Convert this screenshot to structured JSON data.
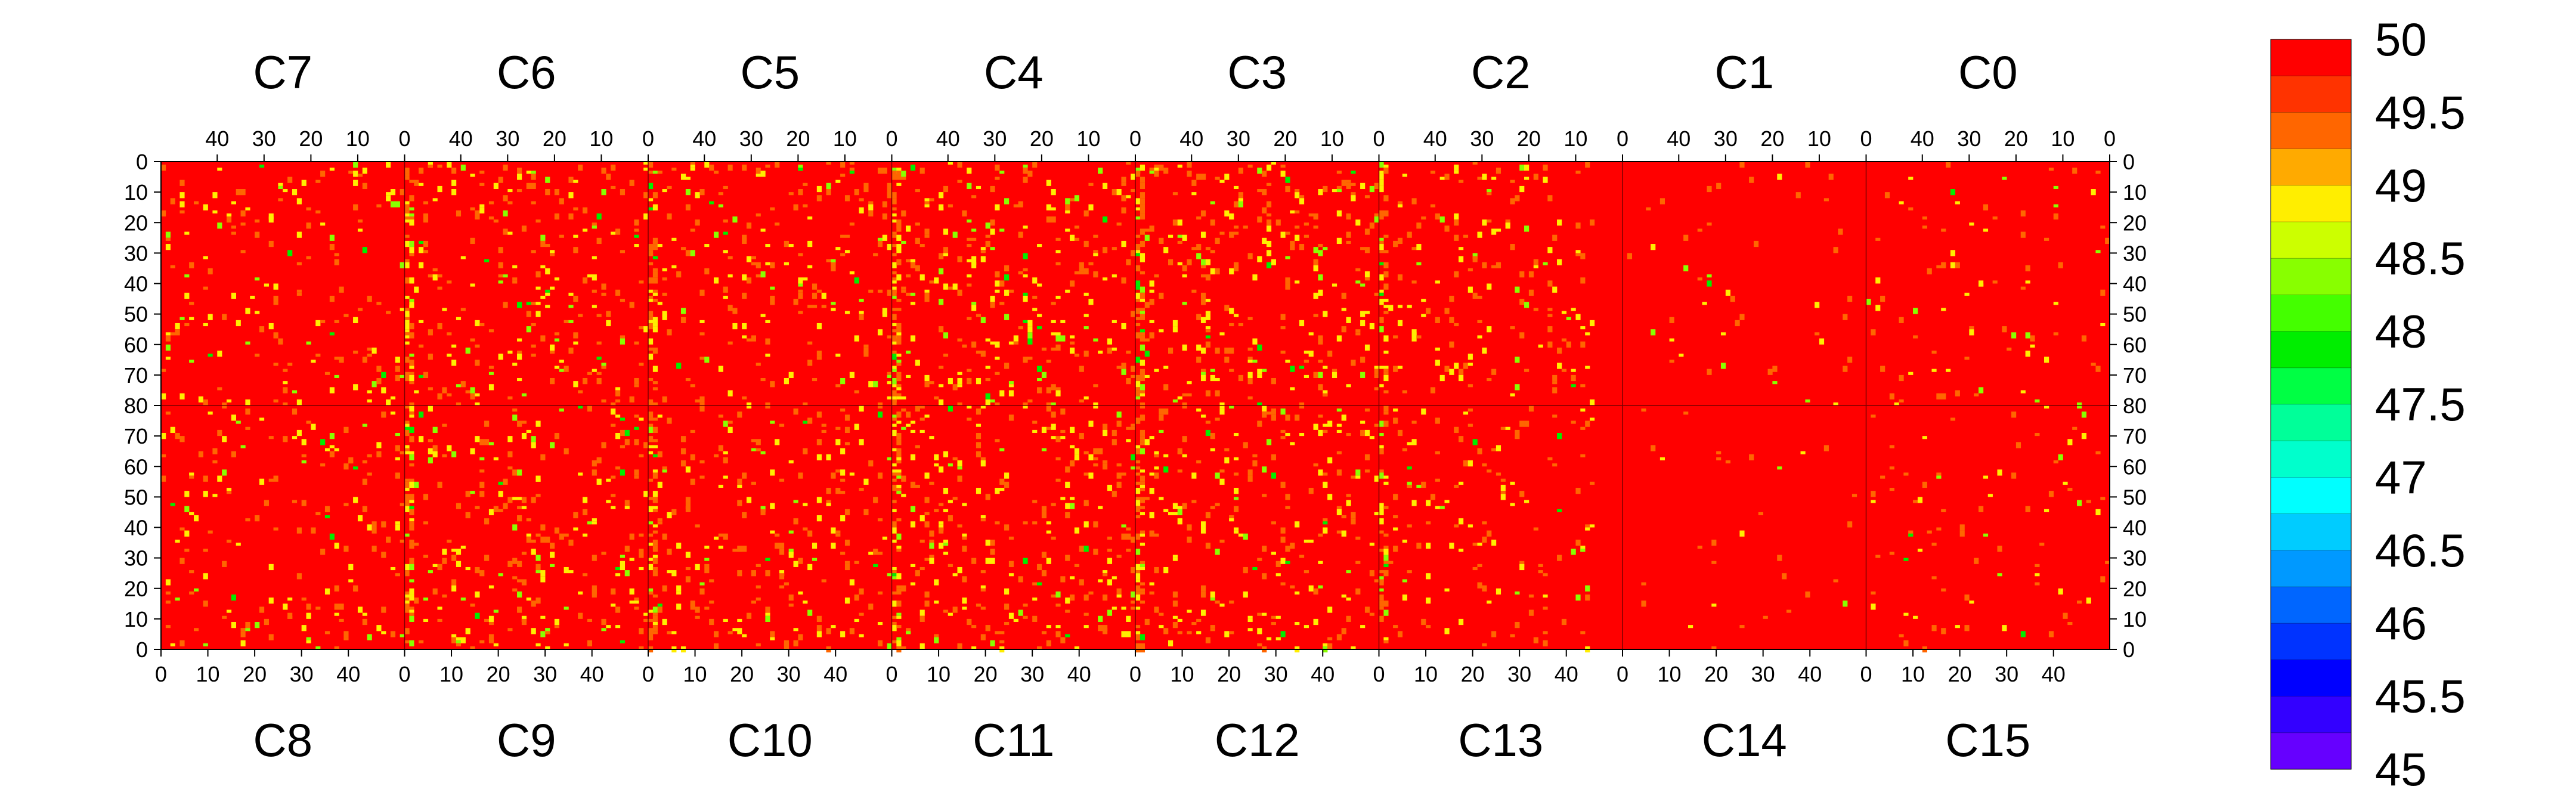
{
  "chart_data": {
    "type": "heatmap",
    "title": "",
    "xlabel": "",
    "ylabel": "",
    "value_range": [
      45,
      50
    ],
    "chips_top": [
      "C7",
      "C6",
      "C5",
      "C4",
      "C3",
      "C2",
      "C1",
      "C0"
    ],
    "chips_bottom": [
      "C8",
      "C9",
      "C10",
      "C11",
      "C12",
      "C13",
      "C14",
      "C15"
    ],
    "columns_per_chip": 52,
    "rows_per_half": 80,
    "x_ticks_bottom": [
      "0",
      "10",
      "20",
      "30",
      "40"
    ],
    "x_ticks_top": [
      "40",
      "30",
      "20",
      "10",
      "0"
    ],
    "y_ticks_top": [
      "0",
      "10",
      "20",
      "30",
      "40",
      "50",
      "60",
      "70",
      "80"
    ],
    "y_ticks_bottom": [
      "70",
      "60",
      "50",
      "40",
      "30",
      "20",
      "10",
      "0"
    ],
    "colorbar": {
      "labels": [
        "50",
        "49.5",
        "49",
        "48.5",
        "48",
        "47.5",
        "47",
        "46.5",
        "46",
        "45.5",
        "45"
      ],
      "colors": [
        "#ff0000",
        "#ff3300",
        "#ff6600",
        "#ffaa00",
        "#ffee00",
        "#ccff00",
        "#88ff00",
        "#44ff00",
        "#00ee00",
        "#00ff44",
        "#00ff99",
        "#00ffcc",
        "#00ffff",
        "#00ccff",
        "#0099ff",
        "#0066ff",
        "#0033ff",
        "#0000ff",
        "#3300ff",
        "#6600ff"
      ]
    },
    "background_value": 50,
    "typical_low_values": [
      49.5,
      49,
      48.5,
      48
    ]
  }
}
